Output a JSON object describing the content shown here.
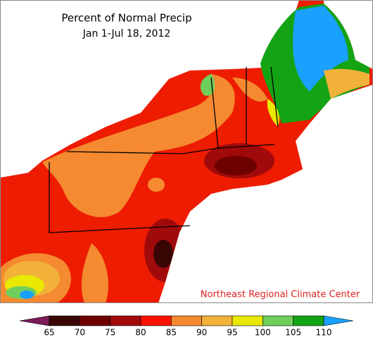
{
  "header": {
    "title": "Percent of Normal Precip",
    "subtitle": "Jan 1-Jul 18, 2012"
  },
  "credit": "Northeast Regional Climate Center",
  "legend": {
    "ticks": [
      65,
      70,
      75,
      80,
      85,
      90,
      95,
      100,
      105,
      110
    ],
    "colors": [
      "#7a1b5a",
      "#3a0505",
      "#6e0000",
      "#a10a0a",
      "#ff1100",
      "#f58a30",
      "#f2b23a",
      "#e8e800",
      "#6fcf5a",
      "#14a314",
      "#1aa0ff"
    ]
  }
}
